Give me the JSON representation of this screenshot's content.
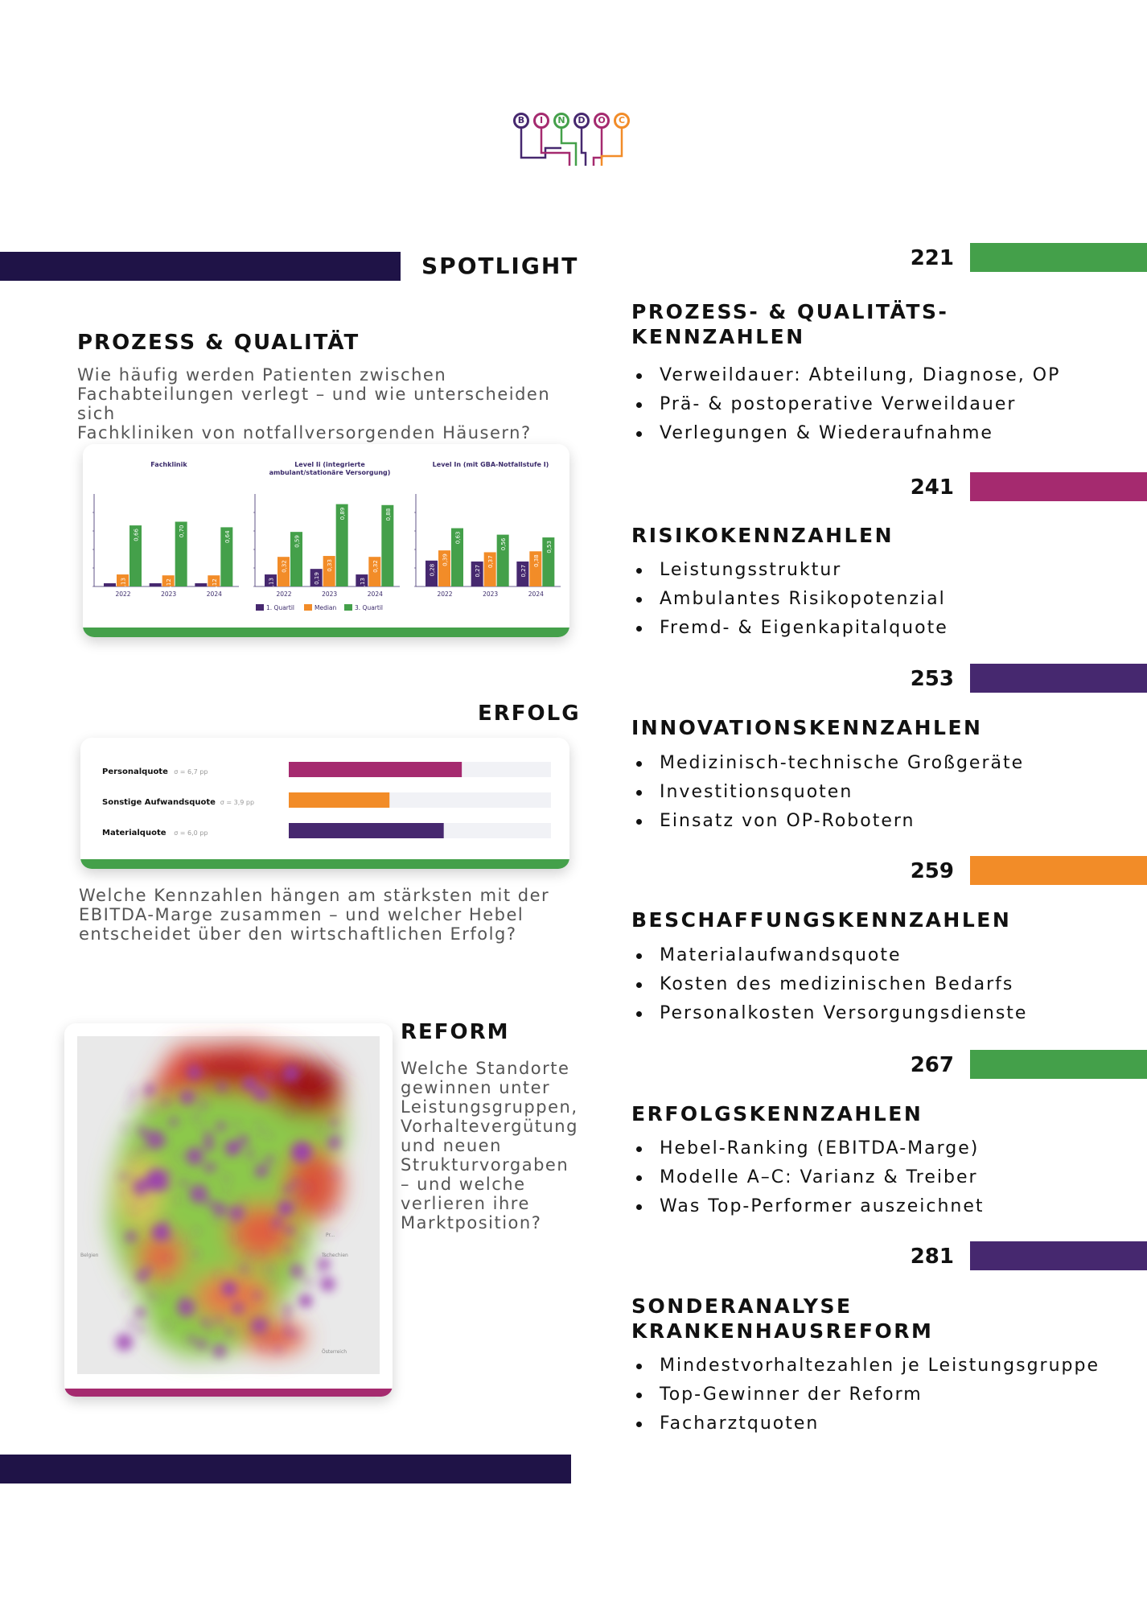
{
  "colors": {
    "dark": "#1f1347",
    "green": "#44a04a",
    "magenta": "#a52a6f",
    "purple": "#46286f",
    "orange": "#f28c28"
  },
  "logo": {
    "letters": [
      "B",
      "I",
      "N",
      "D",
      "O",
      "C"
    ],
    "colors": [
      "#46286f",
      "#a52a6f",
      "#44a04a",
      "#46286f",
      "#a52a6f",
      "#f28c28"
    ]
  },
  "spotlight": {
    "title": "SPOTLIGHT"
  },
  "left": {
    "prozess": {
      "title": "PROZESS & QUALITÄT",
      "text_lines": [
        "Wie häufig werden Patienten zwischen",
        "Fachabteilungen verlegt – und wie unterscheiden sich",
        "Fachkliniken von notfallversorgenden Häusern?"
      ]
    },
    "erfolg": {
      "title": "ERFOLG",
      "text_lines": [
        "Welche Kennzahlen hängen am stärksten mit der",
        "EBITDA-Marge zusammen – und welcher Hebel",
        "entscheidet über den wirtschaftlichen Erfolg?"
      ]
    },
    "reform": {
      "title": "REFORM",
      "text_lines": [
        "Welche Standorte",
        "gewinnen unter",
        "Leistungsgruppen,",
        "Vorhaltevergütung",
        "und neuen",
        "Strukturvorgaben",
        "– und welche",
        "verlieren ihre",
        "Marktposition?"
      ]
    }
  },
  "chart_data": [
    {
      "type": "bar",
      "panels": [
        {
          "title": "Fachklinik",
          "categories": [
            "2022",
            "2023",
            "2024"
          ],
          "series": [
            {
              "name": "1. Quartil",
              "values": [
                0.01,
                0.0,
                0.01
              ],
              "labels": [
                "0,01",
                "0,00",
                "0,01"
              ]
            },
            {
              "name": "Median",
              "values": [
                0.13,
                0.12,
                0.12
              ],
              "labels": [
                "0,13",
                "0,12",
                "0,12"
              ]
            },
            {
              "name": "3. Quartil",
              "values": [
                0.66,
                0.7,
                0.64
              ],
              "labels": [
                "0,66",
                "0,70",
                "0,64"
              ]
            }
          ]
        },
        {
          "title": "Level Ii (integrierte ambulant/stationäre Versorgung)",
          "categories": [
            "2022",
            "2023",
            "2024"
          ],
          "series": [
            {
              "name": "1. Quartil",
              "values": [
                0.13,
                0.19,
                0.13
              ],
              "labels": [
                "0,13",
                "0,19",
                "0,13"
              ]
            },
            {
              "name": "Median",
              "values": [
                0.32,
                0.33,
                0.32
              ],
              "labels": [
                "0,32",
                "0,33",
                "0,32"
              ]
            },
            {
              "name": "3. Quartil",
              "values": [
                0.59,
                0.89,
                0.88
              ],
              "labels": [
                "0,59",
                "0,89",
                "0,88"
              ]
            }
          ]
        },
        {
          "title": "Level In (mit GBA-Notfallstufe I)",
          "categories": [
            "2022",
            "2023",
            "2024"
          ],
          "series": [
            {
              "name": "1. Quartil",
              "values": [
                0.28,
                0.27,
                0.27
              ],
              "labels": [
                "0,28",
                "0,27",
                "0,27"
              ]
            },
            {
              "name": "Median",
              "values": [
                0.39,
                0.37,
                0.38
              ],
              "labels": [
                "0,39",
                "0,37",
                "0,38"
              ]
            },
            {
              "name": "3. Quartil",
              "values": [
                0.63,
                0.56,
                0.53
              ],
              "labels": [
                "0,63",
                "0,56",
                "0,53"
              ]
            }
          ]
        }
      ],
      "legend": [
        "1. Quartil",
        "Median",
        "3. Quartil"
      ],
      "colors": [
        "#46286f",
        "#f28c28",
        "#44a04a"
      ],
      "ylim": [
        0,
        1.0
      ]
    },
    {
      "type": "bar",
      "orientation": "horizontal",
      "categories": [
        "Personalquote",
        "Sonstige Aufwandsquote",
        "Materialquote"
      ],
      "annotations": [
        "σ = 6,7 pp",
        "σ = 3,9 pp",
        "σ = 6,0 pp"
      ],
      "values": [
        6.7,
        3.9,
        6.0
      ],
      "colors": [
        "#a52a6f",
        "#f28c28",
        "#46286f"
      ],
      "xlim": [
        0,
        10
      ]
    }
  ],
  "map": {
    "labels": [
      "Pr...",
      "Tschechien",
      "Belgien",
      "Österreich"
    ]
  },
  "sections": [
    {
      "page": "221",
      "color": "#44a04a",
      "title_lines": [
        "PROZESS- & QUALITÄTS-",
        "KENNZAHLEN"
      ],
      "items": [
        "Verweildauer: Abteilung, Diagnose, OP",
        "Prä- & postoperative Verweildauer",
        "Verlegungen & Wiederaufnahme"
      ]
    },
    {
      "page": "241",
      "color": "#a52a6f",
      "title_lines": [
        "RISIKOKENNZAHLEN"
      ],
      "items": [
        "Leistungsstruktur",
        "Ambulantes Risikopotenzial",
        "Fremd- & Eigenkapitalquote"
      ]
    },
    {
      "page": "253",
      "color": "#46286f",
      "title_lines": [
        "INNOVATIONSKENNZAHLEN"
      ],
      "items": [
        "Medizinisch-technische Großgeräte",
        "Investitionsquoten",
        "Einsatz von OP-Robotern"
      ]
    },
    {
      "page": "259",
      "color": "#f28c28",
      "title_lines": [
        "BESCHAFFUNGSKENNZAHLEN"
      ],
      "items": [
        "Materialaufwandsquote",
        "Kosten des medizinischen Bedarfs",
        "Personalkosten Versorgungsdienste"
      ]
    },
    {
      "page": "267",
      "color": "#44a04a",
      "title_lines": [
        "ERFOLGSKENNZAHLEN"
      ],
      "items": [
        "Hebel-Ranking (EBITDA-Marge)",
        "Modelle A–C: Varianz & Treiber",
        "Was Top-Performer auszeichnet"
      ]
    },
    {
      "page": "281",
      "color": "#46286f",
      "title_lines": [
        "SONDERANALYSE",
        "KRANKENHAUSREFORM"
      ],
      "items": [
        "Mindestvorhaltezahlen je Leistungsgruppe",
        "Top-Gewinner der Reform",
        "Facharztquoten"
      ]
    }
  ]
}
